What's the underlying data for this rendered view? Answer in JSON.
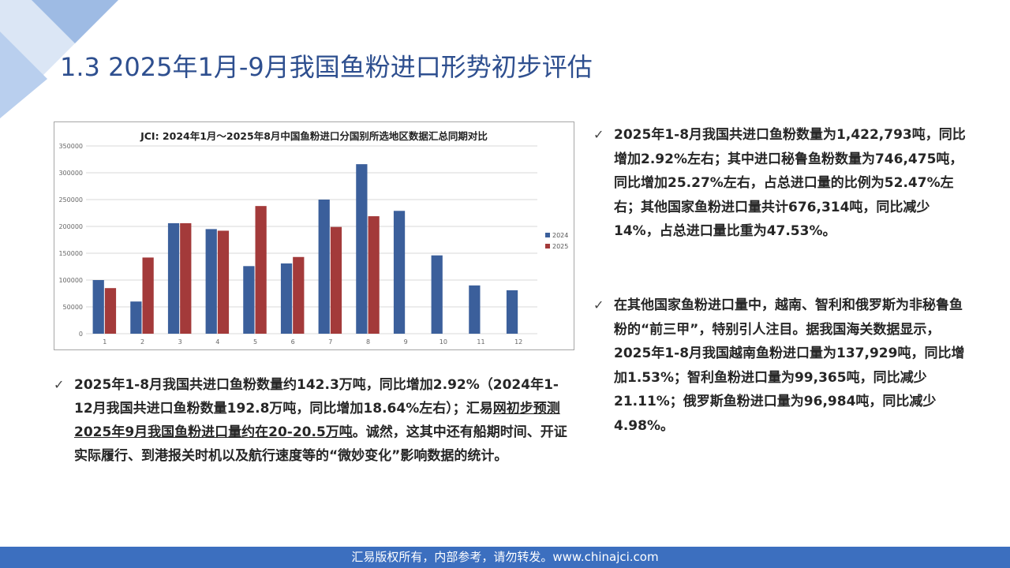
{
  "page": {
    "title": "1.3 2025年1月-9月我国鱼粉进口形势初步评估",
    "footer": "汇易版权所有，内部参考，请勿转发。www.chinajci.com"
  },
  "colors": {
    "title": "#2e4f8f",
    "series_2024": "#3b5f9b",
    "series_2025": "#a33a3a",
    "footer_bg": "#3c6fbf"
  },
  "bullets": {
    "check_icon": "✓",
    "b1": "2025年1-8月我国共进口鱼粉数量为1,422,793吨，同比增加2.92%左右；其中进口秘鲁鱼粉数量为746,475吨，同比增加25.27%左右，占总进口量的比例为52.47%左右；其他国家鱼粉进口量共计676,314吨，同比减少14%，占总进口量比重为47.53%。",
    "b2": "在其他国家鱼粉进口量中，越南、智利和俄罗斯为非秘鲁鱼粉的“前三甲”，特别引人注目。据我国海关数据显示，2025年1-8月我国越南鱼粉进口量为137,929吨，同比增加1.53%；智利鱼粉进口量为99,365吨，同比减少21.11%；俄罗斯鱼粉进口量为96,984吨，同比减少4.98%。",
    "b3_part1": "2025年1-8月我国共进口鱼粉数量约142.3万吨，同比增加2.92%（2024年1-12月我国共进口鱼粉数量192.8万吨，同比增加18.64%左右）；汇易",
    "b3_underlined": "网初步预测2025年9月我国鱼粉进口量约在20-20.5万吨",
    "b3_part2": "。诚然，这其中还有船期时间、开证实际履行、到港报关时机以及航行速度等的“微妙变化”影响数据的统计。"
  },
  "chart_data": {
    "type": "bar",
    "title": "JCI: 2024年1月～2025年8月中国鱼粉进口分国别所选地区数据汇总同期对比",
    "categories": [
      "1",
      "2",
      "3",
      "4",
      "5",
      "6",
      "7",
      "8",
      "9",
      "10",
      "11",
      "12"
    ],
    "series": [
      {
        "name": "2024",
        "values": [
          100000,
          60000,
          206000,
          195000,
          126000,
          131000,
          250000,
          316000,
          229000,
          146000,
          90000,
          81000
        ]
      },
      {
        "name": "2025",
        "values": [
          85000,
          142000,
          206000,
          192000,
          238000,
          143000,
          199000,
          219000,
          null,
          null,
          null,
          null
        ]
      }
    ],
    "yticks": [
      "0",
      "50000",
      "100000",
      "150000",
      "200000",
      "250000",
      "300000",
      "350000"
    ],
    "ylim": [
      0,
      350000
    ],
    "grid": true,
    "legend_position": "right"
  }
}
